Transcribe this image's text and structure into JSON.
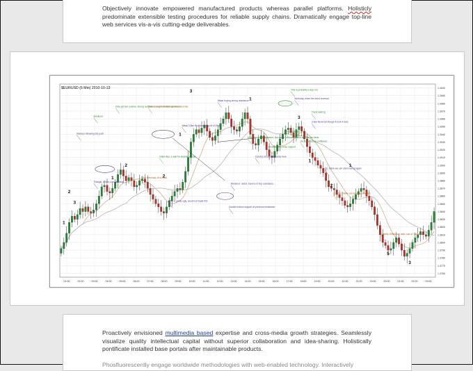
{
  "document": {
    "top_paragraph": {
      "text_before_word": "Objectively innovate empowered manufactured products whereas parallel platforms. ",
      "misspelled_word": "Holisticly",
      "text_after_word": " predominate extensible testing procedures for reliable supply chains. Dramatically engage top-line web services vis-a-vis cutting-edge deliverables."
    },
    "bottom_paragraph": {
      "text_before_link": "Proactively envisioned ",
      "link_text": "multimedia based",
      "text_after_link": " expertise and cross-media growth strategies. Seamlessly visualize quality intellectual capital without superior collaboration and idea-sharing. Holistically pontificate installed base portals after maintainable products.",
      "cut_line": "Phosfluorescently engage worldwide methodologies with web-enabled technology. Interactively"
    }
  },
  "chart_data": {
    "type": "candlestick",
    "title": "$EURUSD (5 Min)  2010-10-13",
    "y_ticks": [
      "1.4000",
      "1.3990",
      "1.3980",
      "1.3970",
      "1.3960",
      "1.3950",
      "1.3940",
      "1.3930",
      "1.3920",
      "1.3910",
      "1.3900",
      "1.3890",
      "1.3880",
      "1.3870",
      "1.3860",
      "1.3850",
      "1.3840",
      "1.3830",
      "1.3820",
      "1.3810",
      "1.3800",
      "1.3790",
      "1.3780",
      "1.3770",
      "1.3760"
    ],
    "ylim": [
      1.3755,
      1.4005
    ],
    "x_ticks": [
      "01:00",
      "02:00",
      "03:00",
      "04:00",
      "05:00",
      "06:00",
      "07:00",
      "08:00",
      "09:00",
      "10:00",
      "11:00",
      "12:00",
      "13:00",
      "14:00",
      "15:00",
      "16:00",
      "17:00",
      "18:00",
      "19:00",
      "20:00",
      "21:00",
      "22:00",
      "23:00",
      "00:00",
      "01:00",
      "02:00",
      "03:00"
    ],
    "close_path": [
      1.3792,
      1.38,
      1.3812,
      1.3826,
      1.3834,
      1.383,
      1.3836,
      1.3844,
      1.384,
      1.3846,
      1.384,
      1.3838,
      1.3842,
      1.385,
      1.386,
      1.3872,
      1.3874,
      1.3866,
      1.3864,
      1.387,
      1.3878,
      1.3888,
      1.3894,
      1.3886,
      1.388,
      1.3884,
      1.388,
      1.3872,
      1.3874,
      1.388,
      1.3882,
      1.3878,
      1.387,
      1.3862,
      1.3856,
      1.385,
      1.3846,
      1.384,
      1.3838,
      1.3846,
      1.3854,
      1.386,
      1.3866,
      1.387,
      1.3868,
      1.3878,
      1.3892,
      1.391,
      1.393,
      1.394,
      1.3946,
      1.3942,
      1.3948,
      1.3952,
      1.3944,
      1.3936,
      1.3932,
      1.3938,
      1.3946,
      1.3954,
      1.396,
      1.3968,
      1.396,
      1.395,
      1.3946,
      1.3944,
      1.395,
      1.396,
      1.3968,
      1.396,
      1.394,
      1.3928,
      1.3926,
      1.3934,
      1.3938,
      1.393,
      1.392,
      1.3912,
      1.391,
      1.3918,
      1.3926,
      1.3934,
      1.394,
      1.3946,
      1.3948,
      1.3942,
      1.3936,
      1.3946,
      1.395,
      1.3944,
      1.3934,
      1.3924,
      1.3916,
      1.391,
      1.3906,
      1.39,
      1.3896,
      1.389,
      1.388,
      1.3872,
      1.387,
      1.3868,
      1.3862,
      1.3858,
      1.3854,
      1.3848,
      1.3846,
      1.385,
      1.3856,
      1.3862,
      1.3866,
      1.387,
      1.3868,
      1.386,
      1.3854,
      1.3846,
      1.3836,
      1.3822,
      1.381,
      1.38,
      1.3796,
      1.379,
      1.3792,
      1.38,
      1.3806,
      1.3798,
      1.379,
      1.3782,
      1.3786,
      1.3792,
      1.38,
      1.3806,
      1.381,
      1.3814,
      1.381,
      1.3808,
      1.3816,
      1.3826,
      1.384
    ],
    "wave_labels": [
      {
        "text": "2",
        "i": 3,
        "price": 1.3864
      },
      {
        "text": "3",
        "i": 5,
        "price": 1.385
      },
      {
        "text": "1",
        "i": 1,
        "price": 1.3824
      },
      {
        "text": "2",
        "i": 24,
        "price": 1.3898
      },
      {
        "text": "1",
        "i": 19,
        "price": 1.3882
      },
      {
        "text": "3",
        "i": 48,
        "price": 1.3994
      },
      {
        "text": "2",
        "i": 38,
        "price": 1.3884
      },
      {
        "text": "1",
        "i": 44,
        "price": 1.3938
      },
      {
        "text": "1",
        "i": 70,
        "price": 1.3984
      },
      {
        "text": "3",
        "i": 88,
        "price": 1.396
      },
      {
        "text": "1",
        "i": 92,
        "price": 1.3904
      },
      {
        "text": "1",
        "i": 107,
        "price": 1.3898
      },
      {
        "text": "2",
        "i": 100,
        "price": 1.3872
      },
      {
        "text": "5",
        "i": 121,
        "price": 1.3784
      },
      {
        "text": "3",
        "i": 129,
        "price": 1.3772
      }
    ],
    "annotations": [
      {
        "text": "Breakout",
        "x": 0.09,
        "y": 0.17,
        "color": "#2a8a2a"
      },
      {
        "text": "Retrace following 3rd push",
        "x": 0.045,
        "y": 0.26,
        "color": "#5a3a8a"
      },
      {
        "text": "Only got two pushes, strong resistance, now for future reference",
        "x": 0.148,
        "y": 0.12,
        "color": "#2a8a2a"
      },
      {
        "text": "Triangle, prices consolidating",
        "x": 0.09,
        "y": 0.51,
        "color": "#5a3a8a"
      },
      {
        "text": "Sure enough, double top, bear reversal...",
        "x": 0.235,
        "y": 0.12,
        "color": "#b06020"
      },
      {
        "text": "3-Bar Reversal off of EMA",
        "x": 0.215,
        "y": 0.49,
        "color": "#b06020"
      },
      {
        "text": "3-Bar Rev. 3 wait for cleaner signals",
        "x": 0.265,
        "y": 0.38,
        "color": "#2a8a2a"
      },
      {
        "text": "Weak 3-Bar Rev. bouncing off of EMA",
        "x": 0.325,
        "y": 0.22,
        "color": "#5a3a8a"
      },
      {
        "text": "This is pretty ugly, would not trade this",
        "x": 0.29,
        "y": 0.61,
        "color": "#5a3a8a"
      },
      {
        "text": "Weak buying strong resistance",
        "x": 0.42,
        "y": 0.09,
        "color": "#5a3a8a"
      },
      {
        "text": "More 3-push retracement, but would not have traded against the trend",
        "x": 0.5,
        "y": 0.28,
        "color": "#2a8a2a"
      },
      {
        "text": "Careful, strong resistance here",
        "x": 0.52,
        "y": 0.38,
        "color": "#5a3a8a"
      },
      {
        "text": "Breakout, retest, bounce & buy resistance...",
        "x": 0.455,
        "y": 0.52,
        "color": "#5a3a8a"
      },
      {
        "text": "Double bottom support at previous resistance",
        "x": 0.45,
        "y": 0.64,
        "color": "#5a3a8a"
      },
      {
        "text": "This is probably a stop run",
        "x": 0.615,
        "y": 0.035,
        "color": "#2a8a2a"
      },
      {
        "text": "Multi-day, trade the trend reversal",
        "x": 0.625,
        "y": 0.08,
        "color": "#5a3a8a"
      },
      {
        "text": "Trend waning",
        "x": 0.67,
        "y": 0.15,
        "color": "#2a8a2a"
      },
      {
        "text": "3-Bar Reversal though it took 4 bars",
        "x": 0.67,
        "y": 0.2,
        "color": "#5a3a8a"
      },
      {
        "text": "Ok, 3-bar break confirmed",
        "x": 0.64,
        "y": 0.3,
        "color": "#2a8a2a"
      },
      {
        "text": "Breakout becomes support",
        "x": 0.555,
        "y": 0.33,
        "color": "#2a8a2a"
      },
      {
        "text": "First weak sell",
        "x": 0.6,
        "y": 0.25,
        "color": "#2a8a2a"
      },
      {
        "text": "Oh, thank we can start trading again",
        "x": 0.705,
        "y": 0.44,
        "color": "#5a3a8a"
      },
      {
        "text": "Careful, EMAs can take the direction",
        "x": 0.728,
        "y": 0.57,
        "color": "#b06020"
      },
      {
        "text": "Careful, EMAs can take 'one of' 3rd push",
        "x": 0.855,
        "y": 0.78,
        "color": "#b06020"
      }
    ]
  }
}
